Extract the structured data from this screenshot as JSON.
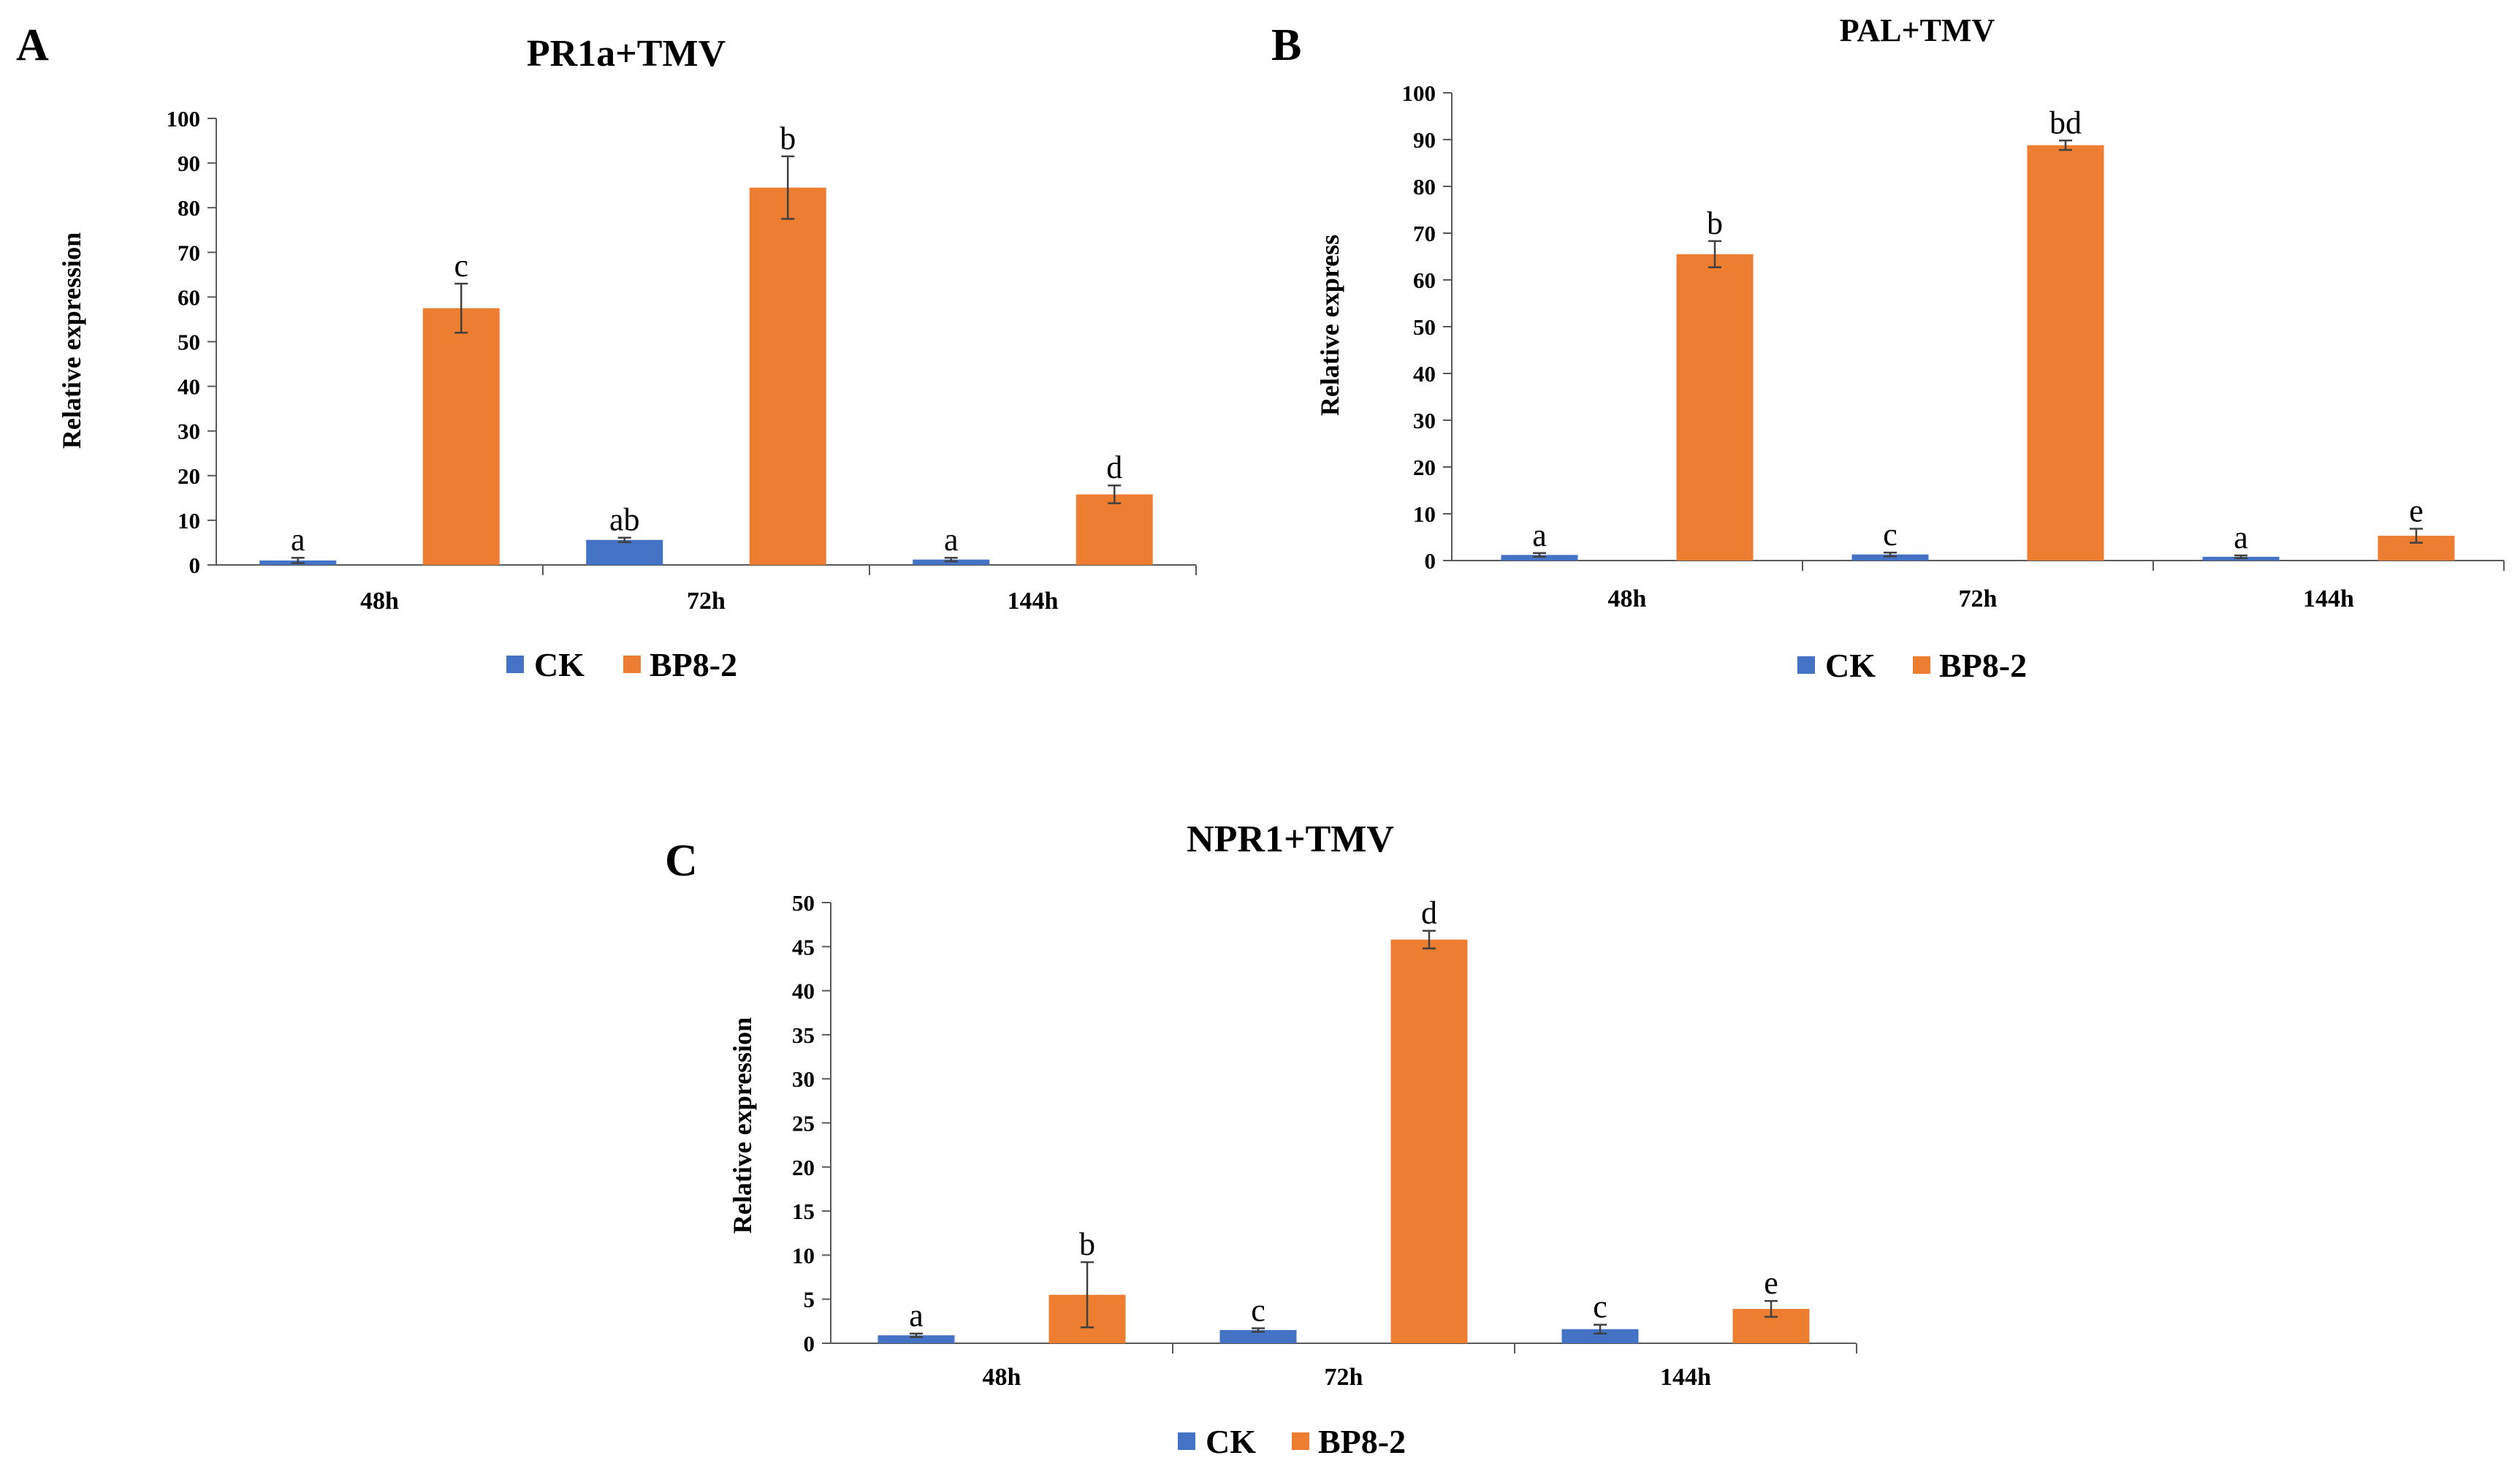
{
  "colors": {
    "CK": "#4472C4",
    "BP8-2": "#ED7D31",
    "axis": "#595959",
    "text": "#000000"
  },
  "chart_data": [
    {
      "type": "bar",
      "panel": "A",
      "title": "PR1a+TMV",
      "xlabel": "",
      "ylabel": "Relative expression",
      "ylim": [
        0,
        100
      ],
      "yticks": [
        0,
        10,
        20,
        30,
        40,
        50,
        60,
        70,
        80,
        90,
        100
      ],
      "categories": [
        "48h",
        "72h",
        "144h"
      ],
      "legend": "bottom",
      "series": [
        {
          "name": "CK",
          "values": [
            1.0,
            5.6,
            1.2
          ],
          "errors": [
            0.6,
            0.5,
            0.4
          ],
          "labels": [
            "a",
            "ab",
            "a"
          ]
        },
        {
          "name": "BP8-2",
          "values": [
            57.5,
            84.5,
            15.8
          ],
          "errors": [
            5.5,
            7.0,
            2.0
          ],
          "labels": [
            "c",
            "b",
            "d"
          ]
        }
      ]
    },
    {
      "type": "bar",
      "panel": "B",
      "title": "PAL+TMV",
      "xlabel": "",
      "ylabel": "Relative express",
      "ylim": [
        0,
        100
      ],
      "yticks": [
        0,
        10,
        20,
        30,
        40,
        50,
        60,
        70,
        80,
        90,
        100
      ],
      "categories": [
        "48h",
        "72h",
        "144h"
      ],
      "legend": "bottom",
      "series": [
        {
          "name": "CK",
          "values": [
            1.2,
            1.3,
            0.8
          ],
          "errors": [
            0.4,
            0.4,
            0.3
          ],
          "labels": [
            "a",
            "c",
            "a"
          ]
        },
        {
          "name": "BP8-2",
          "values": [
            65.5,
            88.8,
            5.3
          ],
          "errors": [
            2.8,
            1.0,
            1.5
          ],
          "labels": [
            "b",
            "bd",
            "e"
          ]
        }
      ]
    },
    {
      "type": "bar",
      "panel": "C",
      "title": "NPR1+TMV",
      "xlabel": "",
      "ylabel": "Relative expression",
      "ylim": [
        0,
        50
      ],
      "yticks": [
        0,
        5,
        10,
        15,
        20,
        25,
        30,
        35,
        40,
        45,
        50
      ],
      "categories": [
        "48h",
        "72h",
        "144h"
      ],
      "legend": "bottom",
      "series": [
        {
          "name": "CK",
          "values": [
            0.9,
            1.5,
            1.6
          ],
          "errors": [
            0.2,
            0.2,
            0.5
          ],
          "labels": [
            "a",
            "c",
            "c"
          ]
        },
        {
          "name": "BP8-2",
          "values": [
            5.5,
            45.8,
            3.9
          ],
          "errors": [
            3.7,
            1.0,
            0.9
          ],
          "labels": [
            "b",
            "d",
            "e"
          ]
        }
      ]
    }
  ]
}
